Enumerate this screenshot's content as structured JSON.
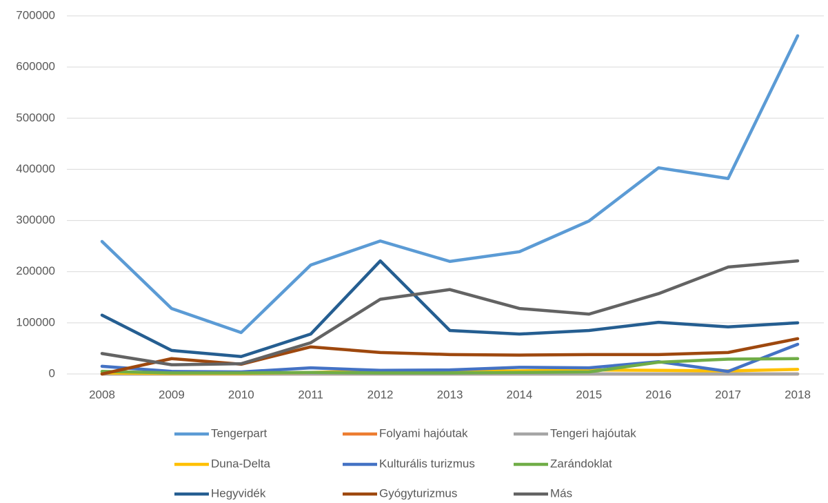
{
  "chart_data": {
    "type": "line",
    "categories": [
      "2008",
      "2009",
      "2010",
      "2011",
      "2012",
      "2013",
      "2014",
      "2015",
      "2016",
      "2017",
      "2018"
    ],
    "ylim": [
      0,
      700000
    ],
    "yticks": [
      0,
      100000,
      200000,
      300000,
      400000,
      500000,
      600000,
      700000
    ],
    "grid": true,
    "legend": "bottom",
    "series": [
      {
        "name": "Tengerpart",
        "color": "#5b9bd5",
        "values": [
          259000,
          128000,
          81000,
          213000,
          260000,
          220000,
          239000,
          299000,
          403000,
          382000,
          661000
        ]
      },
      {
        "name": "Folyami hajóutak",
        "color": "#ed7d31",
        "values": [
          0,
          0,
          0,
          0,
          0,
          0,
          0,
          0,
          0,
          0,
          0
        ]
      },
      {
        "name": "Tengeri hajóutak",
        "color": "#a5a5a5",
        "values": [
          0,
          0,
          0,
          0,
          0,
          0,
          0,
          0,
          0,
          0,
          0
        ]
      },
      {
        "name": "Duna-Delta",
        "color": "#ffc000",
        "values": [
          2000,
          1000,
          1000,
          3000,
          6000,
          5000,
          6000,
          8000,
          7000,
          6000,
          9000
        ]
      },
      {
        "name": "Kulturális turizmus",
        "color": "#4472c4",
        "values": [
          15000,
          5000,
          4000,
          12000,
          7000,
          8000,
          13000,
          12000,
          24000,
          5000,
          58000
        ]
      },
      {
        "name": "Zarándoklat",
        "color": "#70ad47",
        "values": [
          5000,
          2000,
          2000,
          3000,
          2000,
          2000,
          3000,
          4000,
          23000,
          29000,
          30000
        ]
      },
      {
        "name": "Hegyvidék",
        "color": "#255e91",
        "values": [
          115000,
          46000,
          34000,
          78000,
          221000,
          85000,
          78000,
          85000,
          101000,
          92000,
          100000
        ]
      },
      {
        "name": "Gyógyturizmus",
        "color": "#9e480e",
        "values": [
          0,
          30000,
          19000,
          53000,
          42000,
          38000,
          37000,
          38000,
          38000,
          42000,
          69000
        ]
      },
      {
        "name": "Más",
        "color": "#636363",
        "values": [
          40000,
          18000,
          20000,
          61000,
          146000,
          165000,
          128000,
          117000,
          157000,
          209000,
          221000
        ]
      }
    ]
  }
}
